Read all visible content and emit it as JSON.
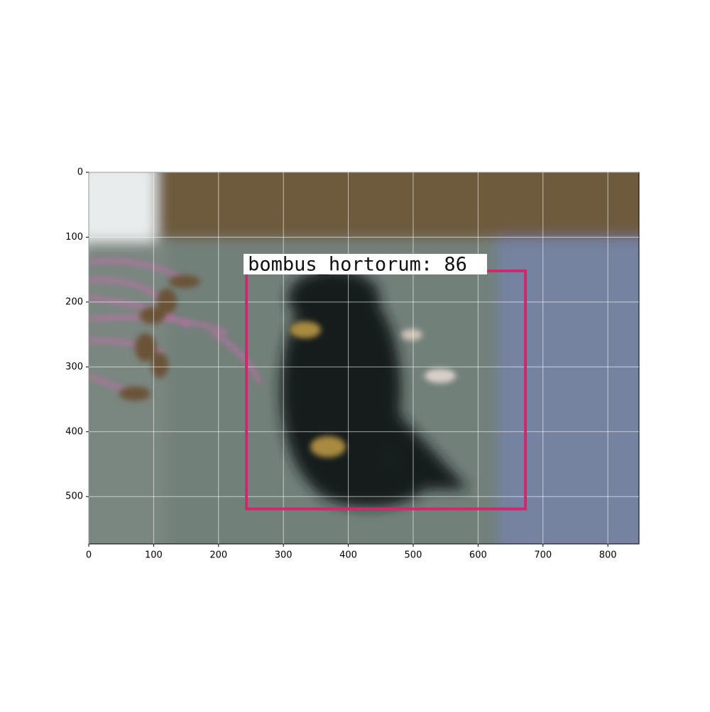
{
  "chart_data": {
    "type": "image",
    "xlim": [
      0,
      848
    ],
    "ylim": [
      573,
      0
    ],
    "xticks": [
      0,
      100,
      200,
      300,
      400,
      500,
      600,
      700,
      800
    ],
    "yticks": [
      0,
      100,
      200,
      300,
      400,
      500
    ],
    "grid": true,
    "box": {
      "x0": 243,
      "y0": 152,
      "x1": 673,
      "y1": 519,
      "color": "#cc2a6c",
      "label": "bombus_hortorum: 86"
    }
  }
}
